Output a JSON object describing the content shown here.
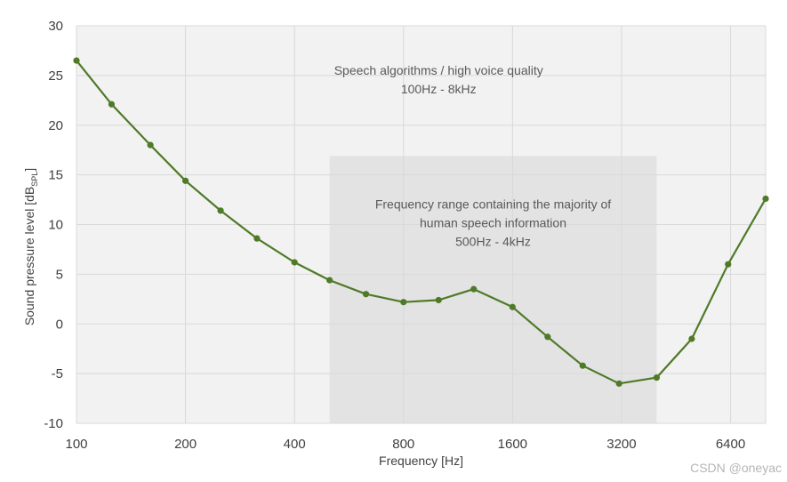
{
  "chart_data": {
    "type": "line",
    "title": "",
    "xlabel": "Frequency [Hz]",
    "ylabel": "Sound pressure level [dB",
    "ylabel_sub": "SPL",
    "ylabel_close": "]",
    "x_scale": "log2",
    "xlim": [
      100,
      8000
    ],
    "ylim": [
      -10,
      30
    ],
    "x_ticks": [
      100,
      200,
      400,
      800,
      1600,
      3200,
      6400
    ],
    "x_tick_labels": [
      "100",
      "200",
      "400",
      "800",
      "1600",
      "3200",
      "6400"
    ],
    "y_ticks": [
      -10,
      -5,
      0,
      5,
      10,
      15,
      20,
      25,
      30
    ],
    "y_tick_labels": [
      "-10",
      "-5",
      "0",
      "5",
      "10",
      "15",
      "20",
      "25",
      "30"
    ],
    "grid": true,
    "line_color": "#4f7a28",
    "plot_bg": "#f2f2f2",
    "grid_color": "#d9d9d9",
    "shade_color": "#e3e3e3",
    "series": [
      {
        "x": [
          100,
          125,
          160,
          200,
          250,
          315,
          400,
          500,
          630,
          800,
          1000,
          1250,
          1600,
          2000,
          2500,
          3150,
          4000,
          5000,
          6300,
          8000
        ],
        "y": [
          26.5,
          22.1,
          18.0,
          14.4,
          11.4,
          8.6,
          6.2,
          4.4,
          3.0,
          2.2,
          2.4,
          3.5,
          1.7,
          -1.3,
          -4.2,
          -6.0,
          -5.4,
          -1.5,
          6.0,
          12.6
        ]
      }
    ],
    "annotations": [
      {
        "lines": [
          "Speech algorithms / high voice quality",
          "100Hz - 8kHz"
        ],
        "anchor_x": 1000,
        "anchor_y": 25.1
      },
      {
        "lines": [
          "Frequency range containing the majority of",
          "human speech information",
          "500Hz - 4kHz"
        ],
        "anchor_x": 1414,
        "anchor_y": 11.6
      }
    ],
    "shaded_region": {
      "x": [
        500,
        4000
      ],
      "y": [
        -10,
        16.9
      ]
    }
  },
  "watermark": "CSDN @oneyac"
}
